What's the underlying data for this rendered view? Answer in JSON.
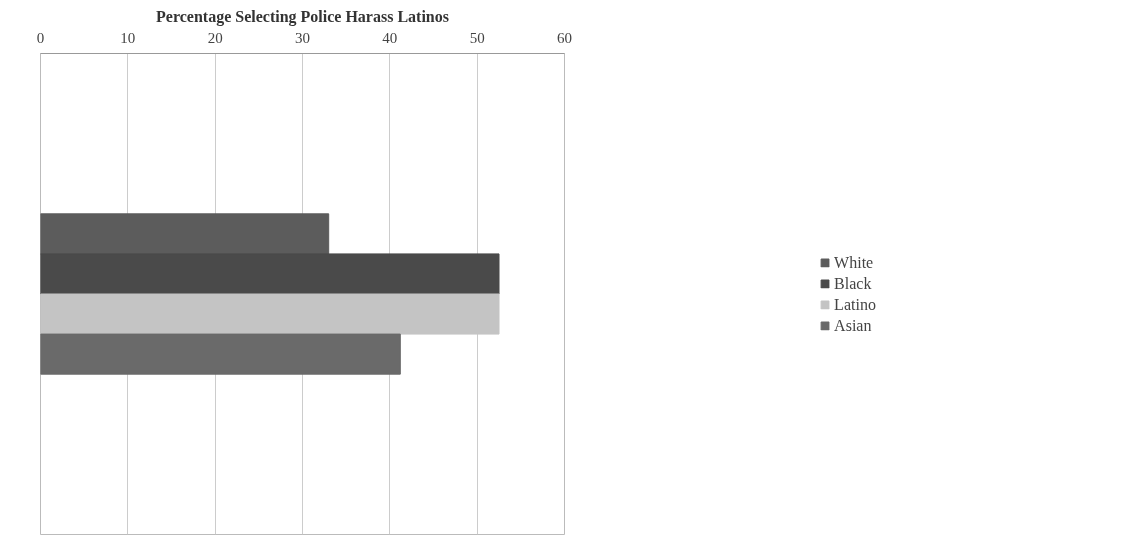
{
  "chart_data": {
    "type": "bar",
    "orientation": "horizontal",
    "title": "Percentage Selecting Police Harass Latinos",
    "categories": [
      null
    ],
    "series": [
      {
        "name": "White",
        "color": "#5c5c5c",
        "values": [
          33
        ]
      },
      {
        "name": "Black",
        "color": "#4a4a4a",
        "values": [
          52.5
        ]
      },
      {
        "name": "Latino",
        "color": "#c4c4c4",
        "values": [
          52.5
        ]
      },
      {
        "name": "Asian",
        "color": "#6a6a6a",
        "values": [
          41.2
        ]
      }
    ],
    "xlim": [
      0,
      60
    ],
    "xticks": [
      0,
      10,
      20,
      30,
      40,
      50,
      60
    ],
    "grid": "x",
    "legend": "right"
  }
}
